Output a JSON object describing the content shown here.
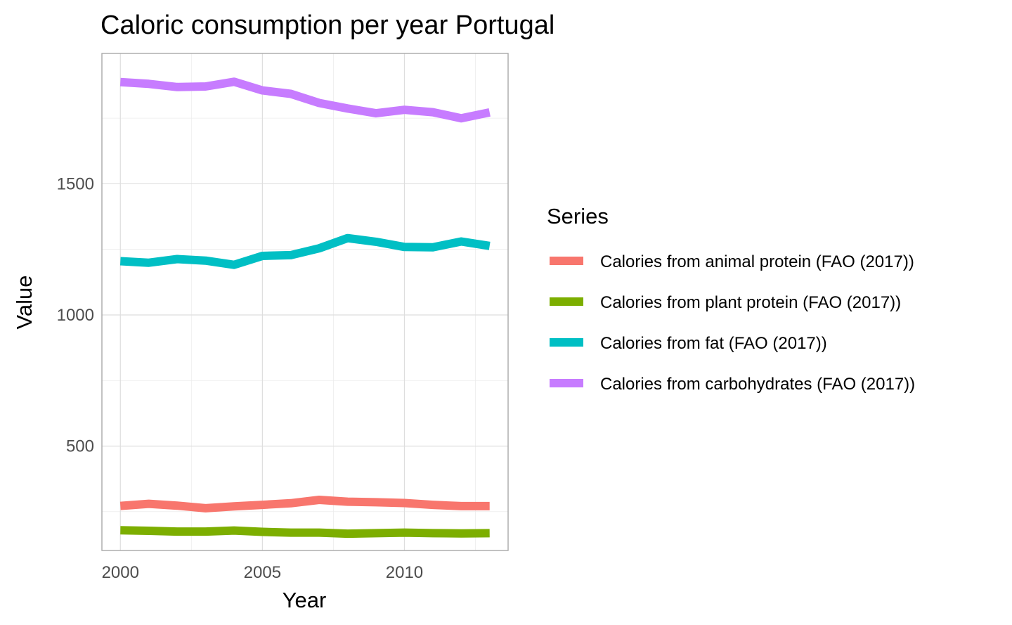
{
  "chart_data": {
    "type": "line",
    "title": "Caloric consumption per year Portugal",
    "xlabel": "Year",
    "ylabel": "Value",
    "x": [
      2000,
      2001,
      2002,
      2003,
      2004,
      2005,
      2006,
      2007,
      2008,
      2009,
      2010,
      2011,
      2012,
      2013
    ],
    "xlim": [
      1999.35,
      2013.65
    ],
    "ylim": [
      102,
      1997
    ],
    "xticks": [
      2000,
      2005,
      2010
    ],
    "yticks": [
      500,
      1000,
      1500
    ],
    "grid": true,
    "legend": {
      "title": "Series",
      "position": "right"
    },
    "series": [
      {
        "name": "Calories from animal protein (FAO (2017))",
        "color": "#F8766D",
        "values": [
          272,
          280,
          273,
          263,
          270,
          276,
          282,
          295,
          288,
          286,
          283,
          276,
          271,
          271
        ]
      },
      {
        "name": "Calories from plant protein (FAO (2017))",
        "color": "#7CAE00",
        "values": [
          179,
          177,
          174,
          174,
          178,
          173,
          170,
          170,
          166,
          168,
          170,
          168,
          167,
          168
        ]
      },
      {
        "name": "Calories from fat (FAO (2017))",
        "color": "#00BFC4",
        "values": [
          1205,
          1199,
          1213,
          1207,
          1191,
          1225,
          1228,
          1254,
          1293,
          1279,
          1259,
          1258,
          1280,
          1263
        ]
      },
      {
        "name": "Calories from carbohydrates (FAO (2017))",
        "color": "#C77CFF",
        "values": [
          1888,
          1881,
          1869,
          1871,
          1889,
          1856,
          1843,
          1808,
          1787,
          1769,
          1782,
          1773,
          1750,
          1772
        ]
      }
    ]
  }
}
